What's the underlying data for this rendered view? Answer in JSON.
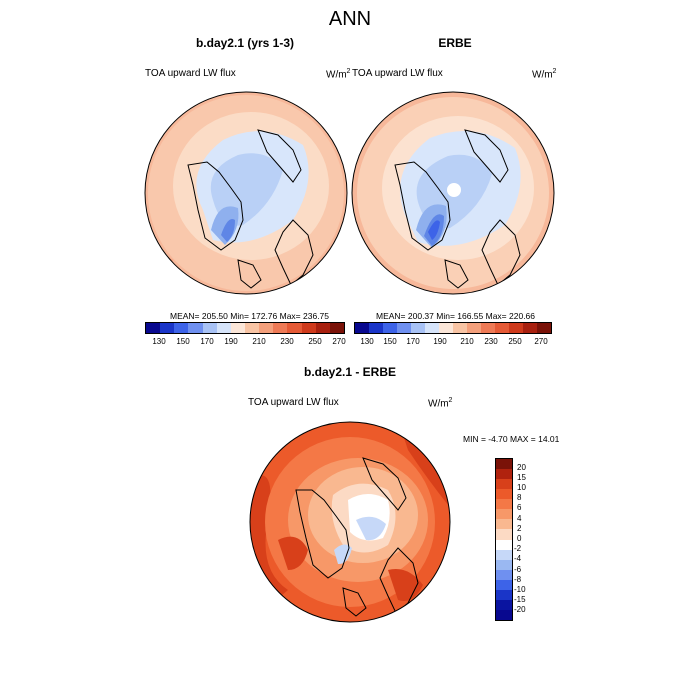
{
  "page": {
    "title": "ANN"
  },
  "panels": [
    {
      "title": "b.day2.1 (yrs 1-3)",
      "variable": "TOA upward LW flux",
      "units": "W/m",
      "units_sup": "2",
      "stats": "MEAN= 205.50  Min= 172.76  Max= 236.75"
    },
    {
      "title": "ERBE",
      "variable": "TOA upward LW flux",
      "units": "W/m",
      "units_sup": "2",
      "stats": "MEAN= 200.37  Min= 166.55  Max= 220.66"
    },
    {
      "title": "b.day2.1 - ERBE",
      "variable": "TOA upward LW flux",
      "units": "W/m",
      "units_sup": "2",
      "stats": "MIN =  -4.70 MAX =  14.01"
    }
  ],
  "abs_colorbar": {
    "labels": [
      "130",
      "150",
      "170",
      "190",
      "210",
      "230",
      "250",
      "270"
    ],
    "colors": [
      "#08088f",
      "#1a35c8",
      "#3d63e8",
      "#6f90f0",
      "#a8c2f5",
      "#d6e4fa",
      "#fbe6d8",
      "#f8c4a4",
      "#f4a07c",
      "#ee7a56",
      "#e55a36",
      "#cf3a1c",
      "#a8200f",
      "#7a1208"
    ]
  },
  "diff_colorbar": {
    "labels": [
      "20",
      "15",
      "10",
      "8",
      "6",
      "4",
      "2",
      "0",
      "-2",
      "-4",
      "-6",
      "-8",
      "-10",
      "-15",
      "-20"
    ],
    "colors": [
      "#7a1208",
      "#b0220e",
      "#d8401a",
      "#ec5a2a",
      "#f47846",
      "#f79868",
      "#f9b890",
      "#fcdac4",
      "#ffffff",
      "#c6d8f8",
      "#9ab8f2",
      "#6f90f0",
      "#3d63e8",
      "#1a35c8",
      "#0a14a0",
      "#08088f"
    ]
  }
}
